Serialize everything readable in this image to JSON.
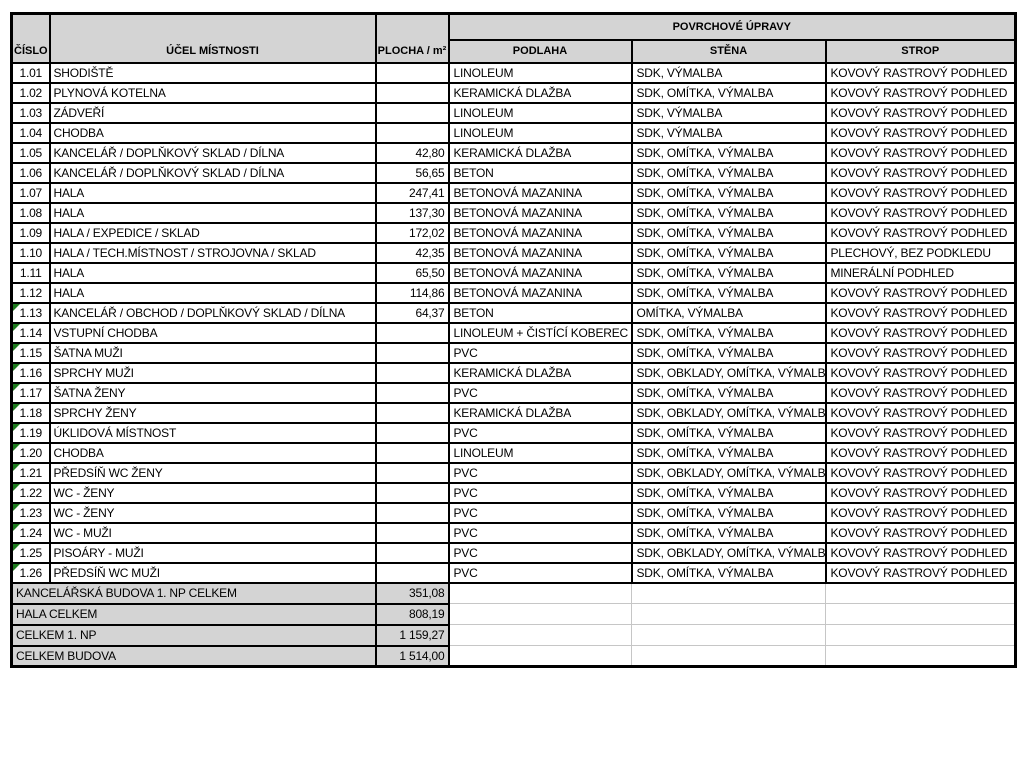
{
  "colors": {
    "header_bg": "#d4d4d4",
    "light_gridline": "#c6c6c6",
    "flag_green": "#1e7b1e",
    "border": "#000000"
  },
  "header": {
    "cislo": "ČÍSLO",
    "ucel": "ÚČEL MÍSTNOSTI",
    "plocha": "PLOCHA / m²",
    "povrchove": "POVRCHOVÉ ÚPRAVY",
    "podlaha": "PODLAHA",
    "stena": "STĚNA",
    "strop": "STROP"
  },
  "rows": [
    {
      "num": "1.01",
      "purpose": "SHODIŠTĚ",
      "area": "",
      "floor": "LINOLEUM",
      "wall": "SDK, VÝMALBA",
      "ceiling": "KOVOVÝ RASTROVÝ PODHLED",
      "flag": false
    },
    {
      "num": "1.02",
      "purpose": "PLYNOVÁ KOTELNA",
      "area": "",
      "floor": "KERAMICKÁ DLAŽBA",
      "wall": "SDK, OMÍTKA, VÝMALBA",
      "ceiling": "KOVOVÝ RASTROVÝ PODHLED",
      "flag": false
    },
    {
      "num": "1.03",
      "purpose": "ZÁDVEŘÍ",
      "area": "",
      "floor": "LINOLEUM",
      "wall": "SDK, VÝMALBA",
      "ceiling": "KOVOVÝ RASTROVÝ PODHLED",
      "flag": false
    },
    {
      "num": "1.04",
      "purpose": "CHODBA",
      "area": "",
      "floor": "LINOLEUM",
      "wall": "SDK, VÝMALBA",
      "ceiling": "KOVOVÝ RASTROVÝ PODHLED",
      "flag": false
    },
    {
      "num": "1.05",
      "purpose": "KANCELÁŘ / DOPLŇKOVÝ SKLAD / DÍLNA",
      "area": "42,80",
      "floor": "KERAMICKÁ DLAŽBA",
      "wall": "SDK, OMÍTKA, VÝMALBA",
      "ceiling": "KOVOVÝ RASTROVÝ PODHLED",
      "flag": false
    },
    {
      "num": "1.06",
      "purpose": "KANCELÁŘ / DOPLŇKOVÝ SKLAD / DÍLNA",
      "area": "56,65",
      "floor": "BETON",
      "wall": "SDK, OMÍTKA, VÝMALBA",
      "ceiling": "KOVOVÝ RASTROVÝ PODHLED",
      "flag": false
    },
    {
      "num": "1.07",
      "purpose": "HALA",
      "area": "247,41",
      "floor": "BETONOVÁ MAZANINA",
      "wall": "SDK, OMÍTKA, VÝMALBA",
      "ceiling": "KOVOVÝ RASTROVÝ PODHLED",
      "flag": false
    },
    {
      "num": "1.08",
      "purpose": "HALA",
      "area": "137,30",
      "floor": "BETONOVÁ MAZANINA",
      "wall": "SDK, OMÍTKA, VÝMALBA",
      "ceiling": "KOVOVÝ RASTROVÝ PODHLED",
      "flag": false
    },
    {
      "num": "1.09",
      "purpose": "HALA / EXPEDICE / SKLAD",
      "area": "172,02",
      "floor": "BETONOVÁ MAZANINA",
      "wall": "SDK, OMÍTKA, VÝMALBA",
      "ceiling": "KOVOVÝ RASTROVÝ PODHLED",
      "flag": false
    },
    {
      "num": "1.10",
      "purpose": "HALA / TECH.MÍSTNOST / STROJOVNA / SKLAD",
      "area": "42,35",
      "floor": "BETONOVÁ MAZANINA",
      "wall": "SDK, OMÍTKA, VÝMALBA",
      "ceiling": "PLECHOVÝ, BEZ PODKLEDU",
      "flag": false
    },
    {
      "num": "1.11",
      "purpose": "HALA",
      "area": "65,50",
      "floor": "BETONOVÁ MAZANINA",
      "wall": "SDK, OMÍTKA, VÝMALBA",
      "ceiling": "MINERÁLNÍ PODHLED",
      "flag": false
    },
    {
      "num": "1.12",
      "purpose": "HALA",
      "area": "114,86",
      "floor": "BETONOVÁ MAZANINA",
      "wall": "SDK, OMÍTKA, VÝMALBA",
      "ceiling": "KOVOVÝ RASTROVÝ PODHLED",
      "flag": false
    },
    {
      "num": "1.13",
      "purpose": "KANCELÁŘ / OBCHOD / DOPLŇKOVÝ SKLAD / DÍLNA",
      "area": "64,37",
      "floor": "BETON",
      "wall": "OMÍTKA, VÝMALBA",
      "ceiling": "KOVOVÝ RASTROVÝ PODHLED",
      "flag": true
    },
    {
      "num": "1.14",
      "purpose": "VSTUPNÍ CHODBA",
      "area": "",
      "floor": "LINOLEUM + ČISTÍCÍ KOBEREC",
      "wall": "SDK, OMÍTKA, VÝMALBA",
      "ceiling": "KOVOVÝ RASTROVÝ PODHLED",
      "flag": true
    },
    {
      "num": "1.15",
      "purpose": "ŠATNA MUŽI",
      "area": "",
      "floor": "PVC",
      "wall": "SDK, OMÍTKA, VÝMALBA",
      "ceiling": "KOVOVÝ RASTROVÝ PODHLED",
      "flag": true
    },
    {
      "num": "1.16",
      "purpose": "SPRCHY MUŽI",
      "area": "",
      "floor": "KERAMICKÁ DLAŽBA",
      "wall": "SDK, OBKLADY, OMÍTKA, VÝMALBA",
      "ceiling": "KOVOVÝ RASTROVÝ PODHLED",
      "flag": true
    },
    {
      "num": "1.17",
      "purpose": "ŠATNA ŽENY",
      "area": "",
      "floor": "PVC",
      "wall": "SDK, OMÍTKA, VÝMALBA",
      "ceiling": "KOVOVÝ RASTROVÝ PODHLED",
      "flag": true
    },
    {
      "num": "1.18",
      "purpose": "SPRCHY ŽENY",
      "area": "",
      "floor": "KERAMICKÁ DLAŽBA",
      "wall": "SDK, OBKLADY, OMÍTKA, VÝMALBA",
      "ceiling": "KOVOVÝ RASTROVÝ PODHLED",
      "flag": true
    },
    {
      "num": "1.19",
      "purpose": "ÚKLIDOVÁ MÍSTNOST",
      "area": "",
      "floor": "PVC",
      "wall": "SDK, OMÍTKA, VÝMALBA",
      "ceiling": "KOVOVÝ RASTROVÝ PODHLED",
      "flag": true
    },
    {
      "num": "1.20",
      "purpose": "CHODBA",
      "area": "",
      "floor": "LINOLEUM",
      "wall": "SDK, OMÍTKA, VÝMALBA",
      "ceiling": "KOVOVÝ RASTROVÝ PODHLED",
      "flag": true
    },
    {
      "num": "1.21",
      "purpose": "PŘEDSÍŇ WC ŽENY",
      "area": "",
      "floor": "PVC",
      "wall": "SDK, OBKLADY, OMÍTKA, VÝMALBA",
      "ceiling": "KOVOVÝ RASTROVÝ PODHLED",
      "flag": true
    },
    {
      "num": "1.22",
      "purpose": "WC - ŽENY",
      "area": "",
      "floor": "PVC",
      "wall": "SDK, OMÍTKA, VÝMALBA",
      "ceiling": "KOVOVÝ RASTROVÝ PODHLED",
      "flag": true
    },
    {
      "num": "1.23",
      "purpose": "WC - ŽENY",
      "area": "",
      "floor": "PVC",
      "wall": "SDK, OMÍTKA, VÝMALBA",
      "ceiling": "KOVOVÝ RASTROVÝ PODHLED",
      "flag": true
    },
    {
      "num": "1.24",
      "purpose": "WC - MUŽI",
      "area": "",
      "floor": "PVC",
      "wall": "SDK, OMÍTKA, VÝMALBA",
      "ceiling": "KOVOVÝ RASTROVÝ PODHLED",
      "flag": true
    },
    {
      "num": "1.25",
      "purpose": "PISOÁRY - MUŽI",
      "area": "",
      "floor": "PVC",
      "wall": "SDK, OBKLADY, OMÍTKA, VÝMALBA",
      "ceiling": "KOVOVÝ RASTROVÝ PODHLED",
      "flag": true
    },
    {
      "num": "1.26",
      "purpose": "PŘEDSÍŇ WC MUŽI",
      "area": "",
      "floor": "PVC",
      "wall": "SDK, OMÍTKA, VÝMALBA",
      "ceiling": "KOVOVÝ RASTROVÝ PODHLED",
      "flag": true
    }
  ],
  "totals": [
    {
      "label": "KANCELÁŘSKÁ BUDOVA 1. NP CELKEM",
      "area": "351,08"
    },
    {
      "label": "HALA CELKEM",
      "area": "808,19"
    },
    {
      "label": "CELKEM 1. NP",
      "area": "1 159,27"
    },
    {
      "label": "CELKEM BUDOVA",
      "area": "1 514,00"
    }
  ]
}
